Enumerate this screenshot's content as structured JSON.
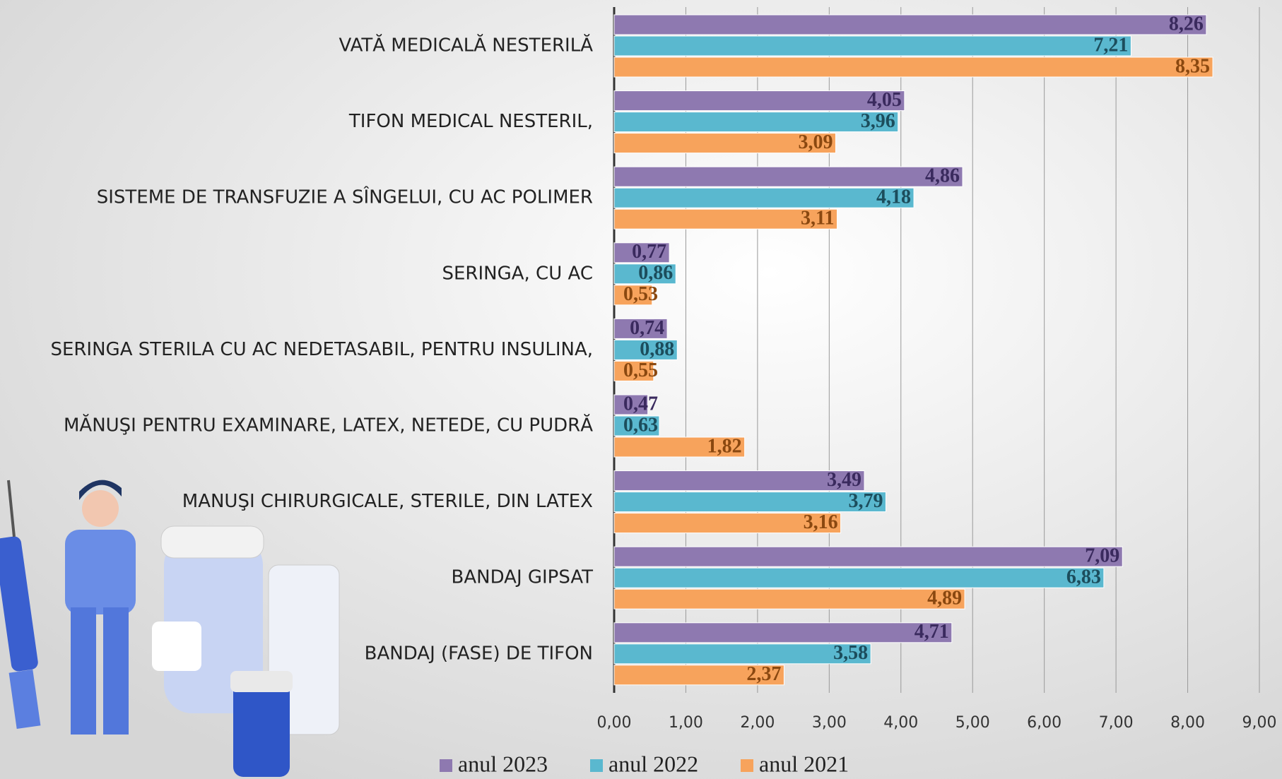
{
  "chart_data": {
    "type": "bar",
    "orientation": "horizontal",
    "categories": [
      "VATĂ MEDICALĂ NESTERILĂ",
      "TIFON MEDICAL NESTERIL,",
      "SISTEME DE TRANSFUZIE A SÎNGELUI, CU AC POLIMER",
      "SERINGA, CU AC",
      "SERINGA STERILA CU AC NEDETASABIL, PENTRU INSULINA,",
      "MĂNUŞI PENTRU EXAMINARE, LATEX, NETEDE, CU PUDRĂ",
      "MANUŞI CHIRURGICALE, STERILE, DIN LATEX",
      "BANDAJ GIPSAT",
      "BANDAJ (FASE) DE TIFON"
    ],
    "series": [
      {
        "name": "anul 2023",
        "color": "#8e79b0",
        "values": [
          8.26,
          4.05,
          4.86,
          0.77,
          0.74,
          0.47,
          3.49,
          7.09,
          4.71
        ],
        "value_labels": [
          "8,26",
          "4,05",
          "4,86",
          "0,77",
          "0,74",
          "0,47",
          "3,49",
          "7,09",
          "4,71"
        ]
      },
      {
        "name": "anul 2022",
        "color": "#5ab8cf",
        "values": [
          7.21,
          3.96,
          4.18,
          0.86,
          0.88,
          0.63,
          3.79,
          6.83,
          3.58
        ],
        "value_labels": [
          "7,21",
          "3,96",
          "4,18",
          "0,86",
          "0,88",
          "0,63",
          "3,79",
          "6,83",
          "3,58"
        ]
      },
      {
        "name": "anul 2021",
        "color": "#f7a35c",
        "values": [
          8.35,
          3.09,
          3.11,
          0.53,
          0.55,
          1.82,
          3.16,
          4.89,
          2.37
        ],
        "value_labels": [
          "8,35",
          "3,09",
          "3,11",
          "0,53",
          "0,55",
          "1,82",
          "3,16",
          "4,89",
          "2,37"
        ]
      }
    ],
    "xlim": [
      0,
      9
    ],
    "xticks": [
      {
        "value": 0,
        "label": "0,00"
      },
      {
        "value": 1,
        "label": "1,00"
      },
      {
        "value": 2,
        "label": "2,00"
      },
      {
        "value": 3,
        "label": "3,00"
      },
      {
        "value": 4,
        "label": "4,00"
      },
      {
        "value": 5,
        "label": "5,00"
      },
      {
        "value": 6,
        "label": "6,00"
      },
      {
        "value": 7,
        "label": "7,00"
      },
      {
        "value": 8,
        "label": "8,00"
      },
      {
        "value": 9,
        "label": "9,00"
      }
    ],
    "grid": true,
    "legend": "bottom"
  }
}
